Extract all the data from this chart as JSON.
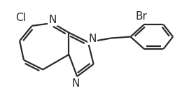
{
  "background_color": "#ffffff",
  "line_color": "#2a2a2a",
  "line_width": 1.6,
  "font_size": 11,
  "label_color": "#2a2a2a",
  "figsize": [
    2.8,
    1.53
  ],
  "dpi": 100,
  "xlim": [
    0,
    2.85
  ],
  "ylim": [
    0,
    1.55
  ]
}
